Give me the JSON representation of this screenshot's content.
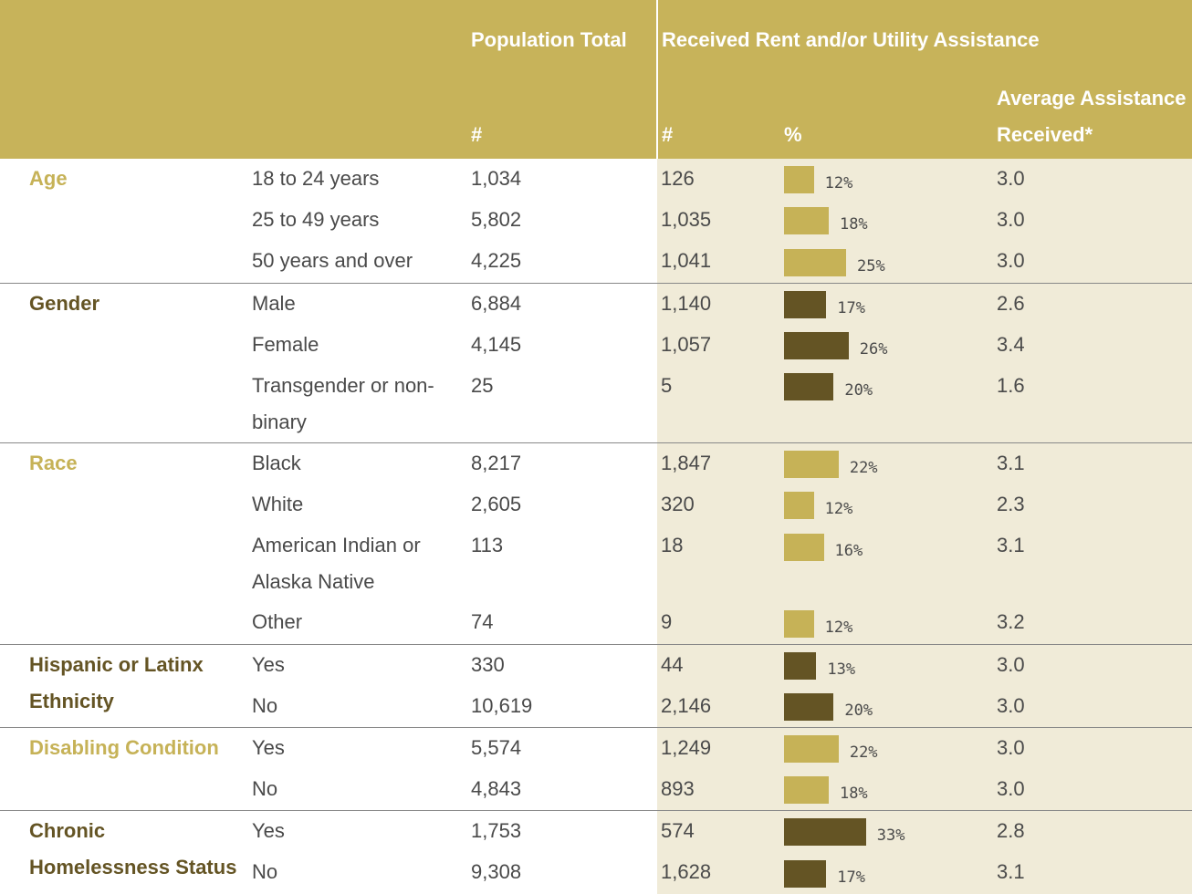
{
  "header": {
    "population_total": "Population Total",
    "received": "Received Rent and/or Utility Assistance",
    "population_count": "#",
    "received_count": "#",
    "received_percent": "%",
    "average": "Average Assistance Received*"
  },
  "groups": [
    {
      "name": "Age",
      "color": "#c6b257",
      "rows": [
        {
          "label": "18 to 24 years",
          "population": "1,034",
          "count": "126",
          "percent": 12,
          "percent_label": "12%",
          "average": "3.0"
        },
        {
          "label": "25 to 49 years",
          "population": "5,802",
          "count": "1,035",
          "percent": 18,
          "percent_label": "18%",
          "average": "3.0"
        },
        {
          "label": "50 years and over",
          "population": "4,225",
          "count": "1,041",
          "percent": 25,
          "percent_label": "25%",
          "average": "3.0"
        }
      ]
    },
    {
      "name": "Gender",
      "color": "#645424",
      "rows": [
        {
          "label": "Male",
          "population": "6,884",
          "count": "1,140",
          "percent": 17,
          "percent_label": "17%",
          "average": "2.6"
        },
        {
          "label": "Female",
          "population": "4,145",
          "count": "1,057",
          "percent": 26,
          "percent_label": "26%",
          "average": "3.4"
        },
        {
          "label": "Transgender or non-binary",
          "population": "25",
          "count": "5",
          "percent": 20,
          "percent_label": "20%",
          "average": "1.6"
        }
      ]
    },
    {
      "name": "Race",
      "color": "#c6b257",
      "rows": [
        {
          "label": "Black",
          "population": "8,217",
          "count": "1,847",
          "percent": 22,
          "percent_label": "22%",
          "average": "3.1"
        },
        {
          "label": "White",
          "population": "2,605",
          "count": "320",
          "percent": 12,
          "percent_label": "12%",
          "average": "2.3"
        },
        {
          "label": "American Indian or Alaska Native",
          "population": "113",
          "count": "18",
          "percent": 16,
          "percent_label": "16%",
          "average": "3.1"
        },
        {
          "label": "Other",
          "population": "74",
          "count": "9",
          "percent": 12,
          "percent_label": "12%",
          "average": "3.2"
        }
      ]
    },
    {
      "name": "Hispanic or Latinx Ethnicity",
      "color": "#645424",
      "rows": [
        {
          "label": "Yes",
          "population": "330",
          "count": "44",
          "percent": 13,
          "percent_label": "13%",
          "average": "3.0"
        },
        {
          "label": "No",
          "population": "10,619",
          "count": "2,146",
          "percent": 20,
          "percent_label": "20%",
          "average": "3.0"
        }
      ]
    },
    {
      "name": "Disabling Condition",
      "color": "#c6b257",
      "rows": [
        {
          "label": "Yes",
          "population": "5,574",
          "count": "1,249",
          "percent": 22,
          "percent_label": "22%",
          "average": "3.0"
        },
        {
          "label": "No",
          "population": "4,843",
          "count": "893",
          "percent": 18,
          "percent_label": "18%",
          "average": "3.0"
        }
      ]
    },
    {
      "name": "Chronic Homelessness Status",
      "color": "#645424",
      "rows": [
        {
          "label": "Yes",
          "population": "1,753",
          "count": "574",
          "percent": 33,
          "percent_label": "33%",
          "average": "2.8"
        },
        {
          "label": "No",
          "population": "9,308",
          "count": "1,628",
          "percent": 17,
          "percent_label": "17%",
          "average": "3.1"
        }
      ]
    }
  ]
}
